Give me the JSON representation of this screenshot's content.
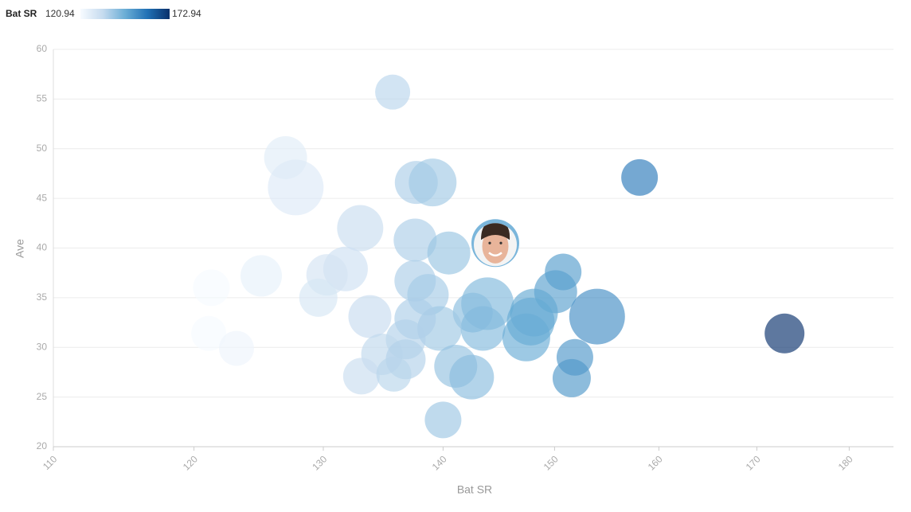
{
  "chart_data": {
    "type": "bubble",
    "legend_title": "Bat SR",
    "color_scale": {
      "min": 120.94,
      "max": 172.94,
      "colors": [
        "#f7fbff",
        "#c6dbef",
        "#6baed6",
        "#2171b5",
        "#08306b"
      ]
    },
    "x_label": "Bat SR",
    "y_label": "Ave",
    "x": [
      135.7,
      127.0,
      127.8,
      137.7,
      139.1,
      158.1,
      133.0,
      137.6,
      140.5,
      144.6,
      131.8,
      130.3,
      125.1,
      121.3,
      129.6,
      150.8,
      150.1,
      137.6,
      138.7,
      133.8,
      143.9,
      142.6,
      148.1,
      154.0,
      147.8,
      143.5,
      139.7,
      137.6,
      172.94,
      121.1,
      123.2,
      136.8,
      147.4,
      134.8,
      136.8,
      151.9,
      141.1,
      142.5,
      133.1,
      135.8,
      151.6,
      140.0
    ],
    "y": [
      55.7,
      49.1,
      46.1,
      46.6,
      46.6,
      47.1,
      42.0,
      40.8,
      39.5,
      40.5,
      37.9,
      37.3,
      37.2,
      36.0,
      35.0,
      37.6,
      35.6,
      36.7,
      35.3,
      33.1,
      34.4,
      33.5,
      33.5,
      33.1,
      32.6,
      31.9,
      31.9,
      32.9,
      31.4,
      31.4,
      29.9,
      30.8,
      31.0,
      29.3,
      28.8,
      29.0,
      28.1,
      27.0,
      27.1,
      27.3,
      26.9,
      22.7
    ],
    "sizes": [
      22,
      27,
      35,
      27,
      30,
      23,
      29,
      27,
      27,
      30,
      28,
      26,
      26,
      23,
      24,
      23,
      27,
      26,
      26,
      27,
      33,
      25,
      30,
      35,
      30,
      28,
      28,
      26,
      25,
      22,
      22,
      25,
      30,
      26,
      25,
      23,
      27,
      28,
      23,
      22,
      24,
      23
    ],
    "highlight": 9,
    "xscale": "log",
    "xlim": [
      110,
      185
    ],
    "xticks": [
      110,
      120,
      130,
      140,
      150,
      160,
      170,
      180
    ],
    "ylim": [
      20,
      60
    ],
    "yticks": [
      20,
      25,
      30,
      35,
      40,
      45,
      50,
      55,
      60
    ],
    "grid": true,
    "opacity": 0.65
  }
}
